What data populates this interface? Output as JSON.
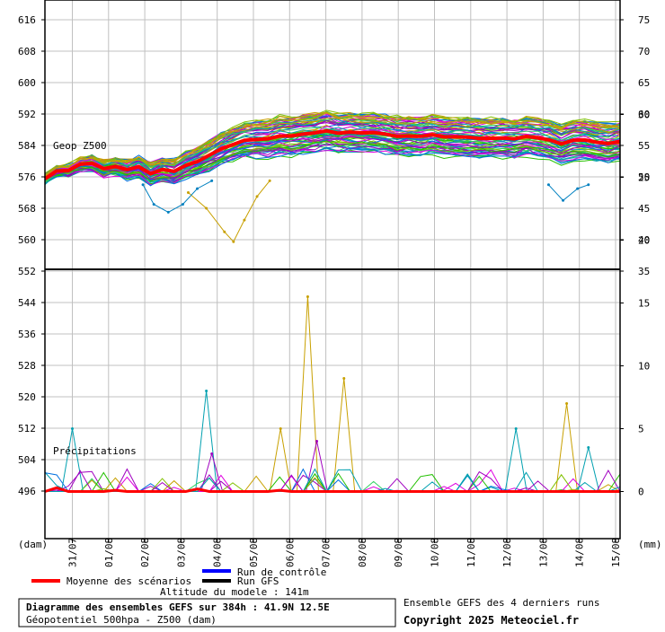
{
  "chart_data": {
    "type": "line",
    "left_axis_label": "(dam)",
    "right_axis_label": "(mm)",
    "left_ticks": [
      616,
      608,
      600,
      592,
      584,
      576,
      568,
      560,
      552,
      544,
      536,
      528,
      520,
      512,
      504,
      496
    ],
    "right_ticks_top": [
      75,
      70,
      65,
      60,
      55,
      50,
      45,
      40,
      35
    ],
    "right_ticks_bottom": [
      30,
      25,
      20,
      15,
      10,
      5,
      0
    ],
    "x_dates": [
      "31/07",
      "01/08",
      "02/08",
      "03/08",
      "04/08",
      "05/08",
      "06/08",
      "07/08",
      "08/08",
      "09/08",
      "10/08",
      "11/08",
      "12/08",
      "13/08",
      "14/08",
      "15/08"
    ],
    "panel_top_label": "Geop Z500",
    "panel_bottom_label": "Précipitations",
    "z500_mean": {
      "name": "Moyenne des scénarios",
      "color": "#ff0000",
      "values": [
        575.5,
        577.5,
        577.6,
        579.2,
        579.5,
        578.1,
        578.6,
        577.8,
        578.6,
        576.8,
        577.9,
        577.4,
        578.9,
        579.9,
        581.5,
        583.1,
        584.2,
        585.3,
        585.5,
        585.7,
        586.4,
        586.4,
        586.9,
        587.2,
        587.7,
        587.1,
        587.4,
        587.2,
        587.3,
        586.9,
        586.3,
        586.4,
        586.3,
        586.7,
        586.2,
        586.2,
        586.1,
        585.8,
        585.8,
        585.9,
        585.7,
        586.3,
        585.9,
        585.4,
        584.4,
        585.3,
        585.4,
        584.8,
        584.5,
        585.0
      ]
    },
    "z500_outliers": [
      {
        "color": "#c8a000",
        "points": [
          [
            3.95,
            572
          ],
          [
            4.45,
            568
          ],
          [
            4.95,
            562
          ],
          [
            5.2,
            559.5
          ],
          [
            5.5,
            565
          ],
          [
            5.85,
            571
          ],
          [
            6.2,
            575
          ]
        ]
      },
      {
        "color": "#0080c0",
        "points": [
          [
            2.7,
            574
          ],
          [
            3.0,
            569
          ],
          [
            3.4,
            567
          ],
          [
            3.8,
            569
          ],
          [
            4.2,
            573
          ],
          [
            4.6,
            575
          ]
        ]
      },
      {
        "color": "#0080c0",
        "points": [
          [
            13.9,
            574
          ],
          [
            14.3,
            570
          ],
          [
            14.7,
            573
          ],
          [
            15.0,
            574
          ]
        ]
      }
    ],
    "precip_mean": {
      "name": "Moyenne des scénarios",
      "color": "#ff0000",
      "values": [
        0.0,
        0.3,
        0.0,
        0.0,
        0.0,
        0.0,
        0.1,
        0.0,
        0.0,
        0.0,
        0.0,
        0.0,
        0.0,
        0.2,
        0.0,
        0.0,
        0.0,
        0.0,
        0.0,
        0.0,
        0.1,
        0.0,
        0.0,
        0.0,
        0.0,
        0.0,
        0.0,
        0.0,
        0.0,
        0.0,
        0.0,
        0.0,
        0.0,
        0.0,
        0.0,
        0.0,
        0.0,
        0.0,
        0.0,
        0.0,
        0.0,
        0.0,
        0.0,
        0.0,
        0.0,
        0.0,
        0.0,
        0.0,
        0.0,
        0.0
      ]
    },
    "precip_peaks": [
      {
        "color": "#00a0b0",
        "t": 0.75,
        "v": 5
      },
      {
        "color": "#00a0b0",
        "t": 4.45,
        "v": 8
      },
      {
        "color": "#c8a000",
        "t": 7.25,
        "v": 15.5
      },
      {
        "color": "#c8a000",
        "t": 8.25,
        "v": 9
      },
      {
        "color": "#c8a000",
        "t": 6.5,
        "v": 5
      },
      {
        "color": "#a000c0",
        "t": 7.5,
        "v": 4
      },
      {
        "color": "#c8a000",
        "t": 14.4,
        "v": 7
      },
      {
        "color": "#00a0b0",
        "t": 13.0,
        "v": 5
      },
      {
        "color": "#a000c0",
        "t": 4.6,
        "v": 3
      },
      {
        "color": "#00a0b0",
        "t": 15.0,
        "v": 3.5
      }
    ],
    "series_colors": [
      "#22c000",
      "#e000e0",
      "#a000c0",
      "#00a0b0",
      "#0070e0",
      "#c8a000",
      "#30d060",
      "#80c000"
    ]
  },
  "legend": {
    "control": "Run de contrôle",
    "control_color": "#0000ff",
    "gfs": "Run GFS",
    "gfs_color": "#000000",
    "mean": "Moyenne des scénarios",
    "mean_color": "#ff0000",
    "altitude": "Altitude du modele : 141m"
  },
  "footer": {
    "title": "Diagramme des ensembles GEFS sur 384h : 41.9N 12.5E",
    "subtitle": "Géopotentiel 500hpa - Z500 (dam)",
    "runs": "Ensemble GEFS des 4 derniers runs",
    "copyright": "Copyright 2025 Meteociel.fr"
  }
}
